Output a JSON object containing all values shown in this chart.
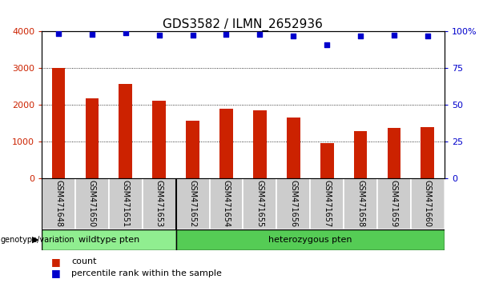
{
  "title": "GDS3582 / ILMN_2652936",
  "samples": [
    "GSM471648",
    "GSM471650",
    "GSM471651",
    "GSM471653",
    "GSM471652",
    "GSM471654",
    "GSM471655",
    "GSM471656",
    "GSM471657",
    "GSM471658",
    "GSM471659",
    "GSM471660"
  ],
  "counts": [
    3005,
    2170,
    2560,
    2110,
    1560,
    1900,
    1850,
    1660,
    950,
    1280,
    1360,
    1400
  ],
  "percentiles": [
    98.5,
    97.8,
    98.7,
    97.5,
    97.2,
    97.8,
    97.8,
    96.9,
    90.5,
    96.5,
    97.2,
    96.8
  ],
  "bar_color": "#cc2200",
  "dot_color": "#0000cc",
  "left_ylim": [
    0,
    4000
  ],
  "right_ylim": [
    0,
    100
  ],
  "left_yticks": [
    0,
    1000,
    2000,
    3000,
    4000
  ],
  "right_yticks": [
    0,
    25,
    50,
    75,
    100
  ],
  "right_yticklabels": [
    "0",
    "25",
    "50",
    "75",
    "100%"
  ],
  "wildtype_count": 4,
  "heterozygous_count": 8,
  "wildtype_label": "wildtype pten",
  "heterozygous_label": "heterozygous pten",
  "wildtype_color": "#90ee90",
  "heterozygous_color": "#55cc55",
  "xticklabel_area_color": "#cccccc",
  "genotype_label": "genotype/variation",
  "legend_count_label": "count",
  "legend_percentile_label": "percentile rank within the sample",
  "background_color": "#ffffff",
  "title_fontsize": 11,
  "tick_fontsize": 8,
  "bar_width": 0.4
}
